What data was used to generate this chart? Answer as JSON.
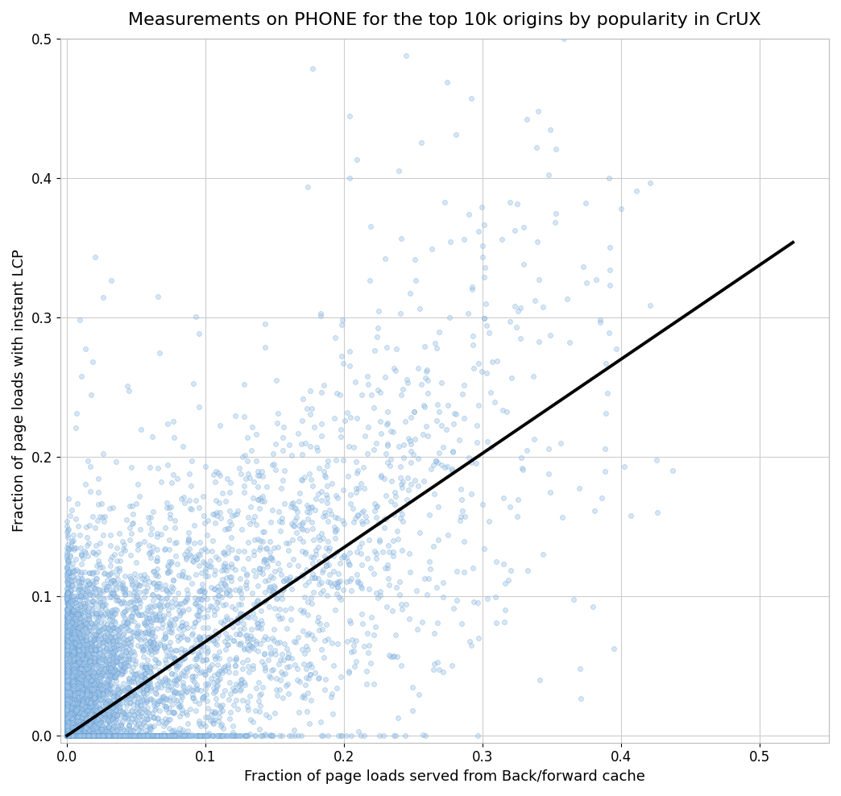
{
  "title": "Measurements on PHONE for the top 10k origins by popularity in CrUX",
  "xlabel": "Fraction of page loads served from Back/forward cache",
  "ylabel": "Fraction of page loads with instant LCP",
  "xlim": [
    -0.005,
    0.55
  ],
  "ylim": [
    -0.005,
    0.5
  ],
  "xticks": [
    0.0,
    0.1,
    0.2,
    0.3,
    0.4,
    0.5
  ],
  "yticks": [
    0.0,
    0.1,
    0.2,
    0.3,
    0.4,
    0.5
  ],
  "scatter_facecolor": "#a8c8e8",
  "scatter_edgecolor": "#5b9bd5",
  "scatter_alpha": 0.45,
  "scatter_size": 18,
  "scatter_linewidth": 0.5,
  "line_color": "black",
  "line_width": 2.8,
  "line_x_start": 0.0,
  "line_x_end": 0.524,
  "line_slope": 0.675,
  "line_intercept": 0.0,
  "background_color": "white",
  "grid_color": "#cccccc",
  "title_fontsize": 16,
  "label_fontsize": 13,
  "tick_fontsize": 12,
  "n_points": 10000,
  "seed": 42
}
